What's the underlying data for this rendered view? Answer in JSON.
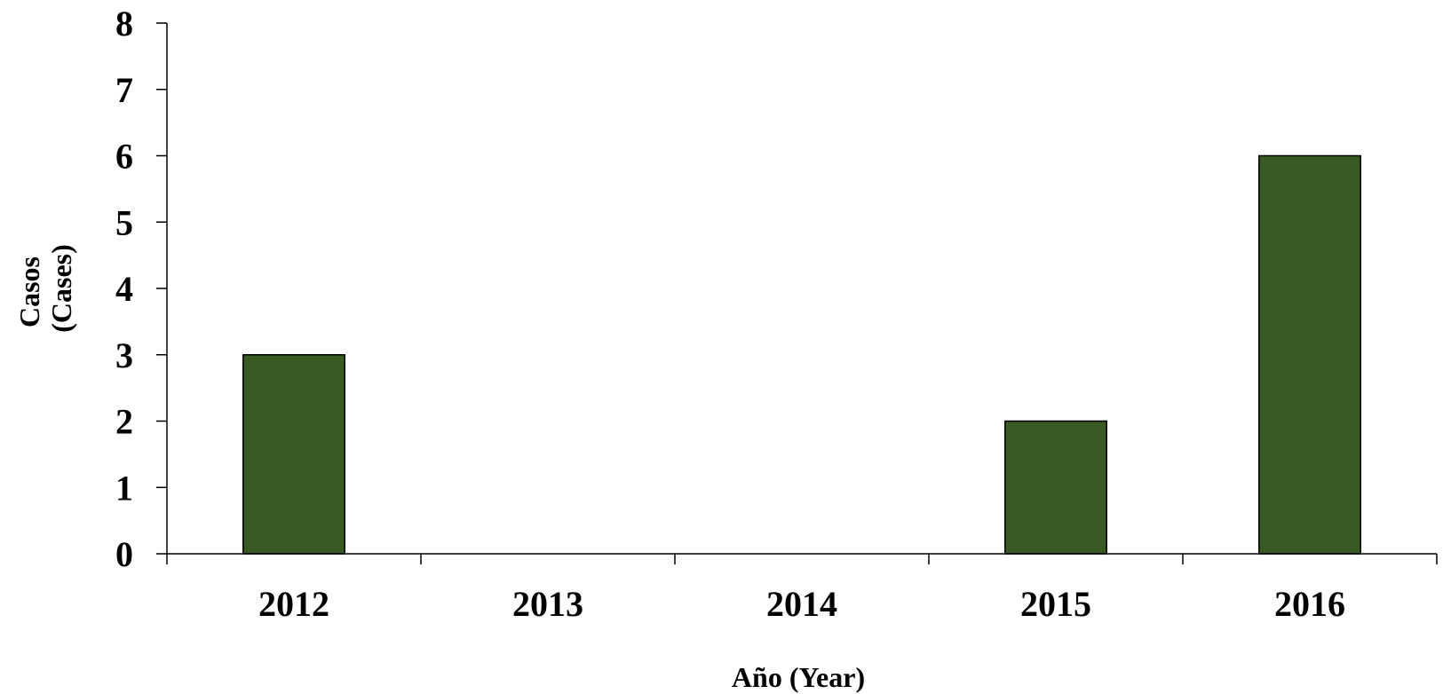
{
  "chart_data": {
    "type": "bar",
    "categories": [
      "2012",
      "2013",
      "2014",
      "2015",
      "2016"
    ],
    "values": [
      3,
      0,
      0,
      2,
      6
    ],
    "title": "",
    "xlabel": "Año (Year)",
    "ylabel_lines": [
      "Casos",
      "(Cases)"
    ],
    "ylim": [
      0,
      8
    ],
    "yticks": [
      "0",
      "1",
      "2",
      "3",
      "4",
      "5",
      "6",
      "7",
      "8"
    ],
    "grid": false,
    "bar_color": "#3a5a24"
  }
}
